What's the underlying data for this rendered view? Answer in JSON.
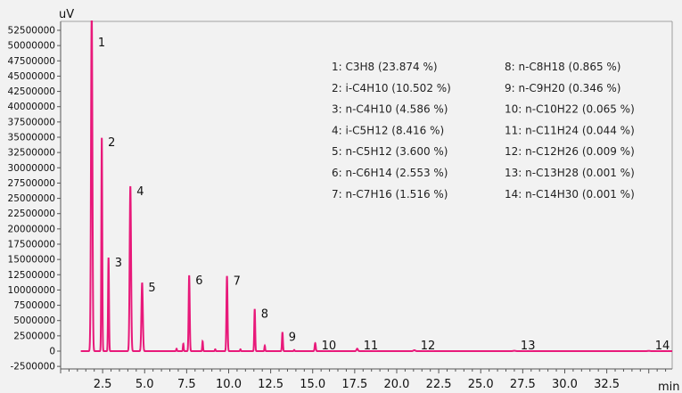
{
  "chart_data": {
    "type": "line",
    "ylabel": "uV",
    "xlabel": "min",
    "xlim": [
      0,
      36.5
    ],
    "ylim": [
      -2500000,
      53500000
    ],
    "x_ticks": [
      {
        "value": 2.5,
        "label": "2.5"
      },
      {
        "value": 5.0,
        "label": "5.0"
      },
      {
        "value": 7.5,
        "label": "7.5"
      },
      {
        "value": 10.0,
        "label": "10.0"
      },
      {
        "value": 12.5,
        "label": "12.5"
      },
      {
        "value": 15.0,
        "label": "15.0"
      },
      {
        "value": 17.5,
        "label": "17.5"
      },
      {
        "value": 20.0,
        "label": "20.0"
      },
      {
        "value": 22.5,
        "label": "22.5"
      },
      {
        "value": 25.0,
        "label": "25.0"
      },
      {
        "value": 27.5,
        "label": "27.5"
      },
      {
        "value": 30.0,
        "label": "30.0"
      },
      {
        "value": 32.5,
        "label": "32.5"
      }
    ],
    "y_ticks": [
      {
        "value": 52500000,
        "label": "52500000"
      },
      {
        "value": 50000000,
        "label": "50000000"
      },
      {
        "value": 47500000,
        "label": "47500000"
      },
      {
        "value": 45000000,
        "label": "45000000"
      },
      {
        "value": 42500000,
        "label": "42500000"
      },
      {
        "value": 40000000,
        "label": "40000000"
      },
      {
        "value": 37500000,
        "label": "37500000"
      },
      {
        "value": 35000000,
        "label": "35000000"
      },
      {
        "value": 32500000,
        "label": "32500000"
      },
      {
        "value": 30000000,
        "label": "30000000"
      },
      {
        "value": 27500000,
        "label": "27500000"
      },
      {
        "value": 25000000,
        "label": "25000000"
      },
      {
        "value": 22500000,
        "label": "22500000"
      },
      {
        "value": 20000000,
        "label": "20000000"
      },
      {
        "value": 17500000,
        "label": "17500000"
      },
      {
        "value": 15000000,
        "label": "15000000"
      },
      {
        "value": 12500000,
        "label": "12500000"
      },
      {
        "value": 10000000,
        "label": "10000000"
      },
      {
        "value": 7500000,
        "label": "7500000"
      },
      {
        "value": 5000000,
        "label": "5000000"
      },
      {
        "value": 2500000,
        "label": "2500000"
      },
      {
        "value": 0,
        "label": "0"
      },
      {
        "value": -2500000,
        "label": "-2500000"
      }
    ],
    "peaks": [
      {
        "label": "1",
        "rt": 1.85,
        "height": 56000000,
        "width": 0.09
      },
      {
        "label": "2",
        "rt": 2.45,
        "height": 35000000,
        "width": 0.06
      },
      {
        "label": "3",
        "rt": 2.85,
        "height": 15300000,
        "width": 0.06
      },
      {
        "label": "4",
        "rt": 4.15,
        "height": 27000000,
        "width": 0.09
      },
      {
        "label": "5",
        "rt": 4.85,
        "height": 11200000,
        "width": 0.09
      },
      {
        "label": "6",
        "rt": 7.65,
        "height": 12400000,
        "width": 0.07
      },
      {
        "label": "7",
        "rt": 9.9,
        "height": 12300000,
        "width": 0.07
      },
      {
        "label": "8",
        "rt": 11.55,
        "height": 6900000,
        "width": 0.06
      },
      {
        "label": "9",
        "rt": 13.2,
        "height": 3100000,
        "width": 0.06
      },
      {
        "label": "10",
        "rt": 15.15,
        "height": 1300000,
        "width": 0.07
      },
      {
        "label": "11",
        "rt": 17.65,
        "height": 400000,
        "width": 0.09
      },
      {
        "label": "12",
        "rt": 21.05,
        "height": 150000,
        "width": 0.12
      },
      {
        "label": "13",
        "rt": 27.0,
        "height": 60000,
        "width": 0.15
      },
      {
        "label": "14",
        "rt": 35.0,
        "height": 40000,
        "width": 0.15
      }
    ],
    "minor_peaks": [
      {
        "rt": 6.9,
        "height": 400000,
        "width": 0.05
      },
      {
        "rt": 7.3,
        "height": 1200000,
        "width": 0.05
      },
      {
        "rt": 8.45,
        "height": 1600000,
        "width": 0.05
      },
      {
        "rt": 9.2,
        "height": 300000,
        "width": 0.05
      },
      {
        "rt": 10.7,
        "height": 300000,
        "width": 0.05
      },
      {
        "rt": 12.15,
        "height": 900000,
        "width": 0.05
      },
      {
        "rt": 13.9,
        "height": 200000,
        "width": 0.05
      }
    ],
    "legend": [
      {
        "text": "1: C3H8 (23.874 %)",
        "col": 0
      },
      {
        "text": "2: i-C4H10 (10.502 %)",
        "col": 0
      },
      {
        "text": "3: n-C4H10 (4.586 %)",
        "col": 0
      },
      {
        "text": "4: i-C5H12 (8.416 %)",
        "col": 0
      },
      {
        "text": "5: n-C5H12 (3.600 %)",
        "col": 0
      },
      {
        "text": "6: n-C6H14 (2.553 %)",
        "col": 0
      },
      {
        "text": "7: n-C7H16 (1.516 %)",
        "col": 0
      },
      {
        "text": "8: n-C8H18 (0.865 %)",
        "col": 1
      },
      {
        "text": "9: n-C9H20 (0.346 %)",
        "col": 1
      },
      {
        "text": "10: n-C10H22 (0.065 %)",
        "col": 1
      },
      {
        "text": "11: n-C11H24 (0.044 %)",
        "col": 1
      },
      {
        "text": "12: n-C12H26 (0.009 %)",
        "col": 1
      },
      {
        "text": "13: n-C13H28 (0.001 %)",
        "col": 1
      },
      {
        "text": "14: n-C14H30 (0.001 %)",
        "col": 1
      }
    ],
    "grid": false,
    "legend_position": "top-right",
    "colors": {
      "trace": "#e8197a",
      "axis": "#555555",
      "background": "#f2f2f2"
    }
  }
}
